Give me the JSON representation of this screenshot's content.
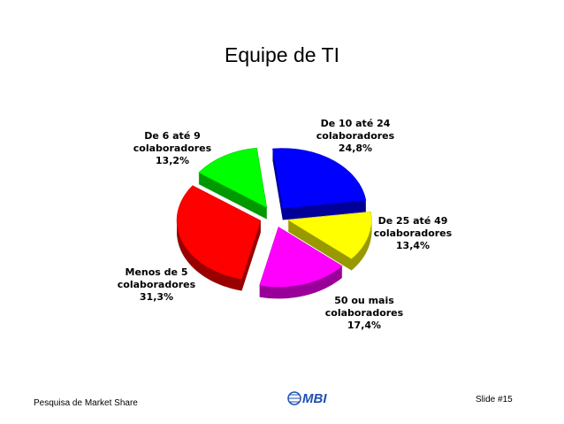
{
  "chart_data": {
    "type": "pie3d",
    "title": "Equipe de TI",
    "categories": [
      "De 10 até 24 colaboradores",
      "De 25 até 49 colaboradores",
      "50 ou mais colaboradores",
      "Menos de 5 colaboradores",
      "De 6 até 9 colaboradores"
    ],
    "values": [
      24.8,
      13.4,
      17.4,
      31.3,
      13.2
    ],
    "value_labels": [
      "24,8%",
      "13,4%",
      "17,4%",
      "31,3%",
      "13,2%"
    ],
    "colors": [
      "#0000ff",
      "#ffff00",
      "#ff00ff",
      "#ff0000",
      "#00ff00"
    ]
  },
  "footer": {
    "left": "Pesquisa de Market Share",
    "logo": "MBI",
    "right": "Slide #15"
  }
}
